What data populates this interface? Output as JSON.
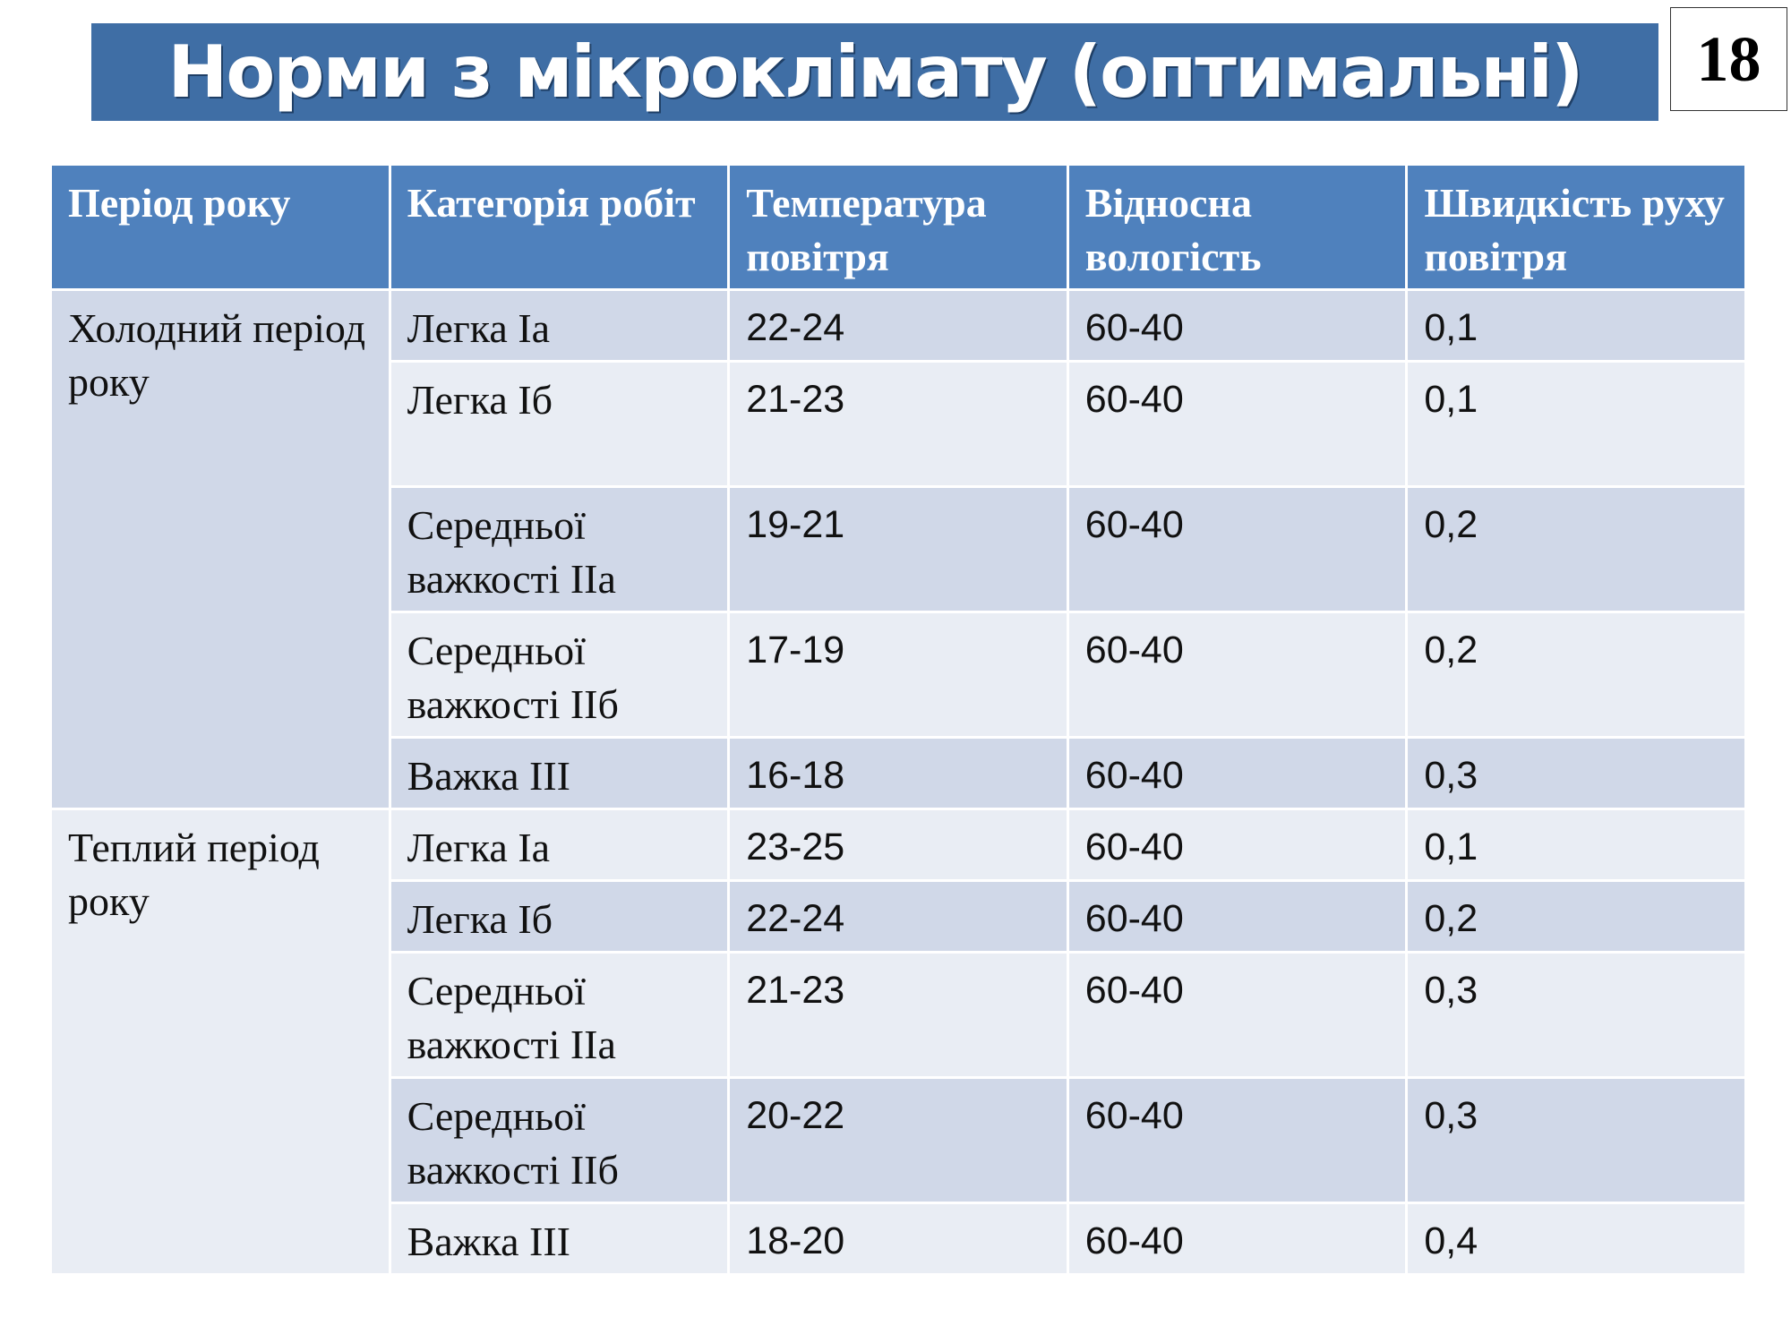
{
  "title": "Норми з мікроклімату (оптимальні)",
  "page_number": "18",
  "table": {
    "headers": [
      "Період року",
      "Категорія робіт",
      "Температура повітря",
      "Відносна вологість",
      "Швидкість руху повітря"
    ],
    "groups": [
      {
        "period": "Холодний період року",
        "rows": [
          {
            "category": "Легка Іа",
            "temperature": "22-24",
            "humidity": "60-40",
            "speed": "0,1"
          },
          {
            "category": "Легка Іб",
            "temperature": "21-23",
            "humidity": "60-40",
            "speed": "0,1"
          },
          {
            "category": "Середньої важкості ІІа",
            "temperature": "19-21",
            "humidity": "60-40",
            "speed": "0,2"
          },
          {
            "category": "Середньої важкості ІІб",
            "temperature": "17-19",
            "humidity": "60-40",
            "speed": "0,2"
          },
          {
            "category": "Важка ІІІ",
            "temperature": "16-18",
            "humidity": "60-40",
            "speed": "0,3"
          }
        ]
      },
      {
        "period": "Теплий період року",
        "rows": [
          {
            "category": "Легка Іа",
            "temperature": "23-25",
            "humidity": "60-40",
            "speed": "0,1"
          },
          {
            "category": "Легка Іб",
            "temperature": "22-24",
            "humidity": "60-40",
            "speed": "0,2"
          },
          {
            "category": "Середньої важкості ІІа",
            "temperature": "21-23",
            "humidity": "60-40",
            "speed": "0,3"
          },
          {
            "category": "Середньої важкості ІІб",
            "temperature": "20-22",
            "humidity": "60-40",
            "speed": "0,3"
          },
          {
            "category": "Важка ІІІ",
            "temperature": "18-20",
            "humidity": "60-40",
            "speed": "0,4"
          }
        ]
      }
    ]
  }
}
